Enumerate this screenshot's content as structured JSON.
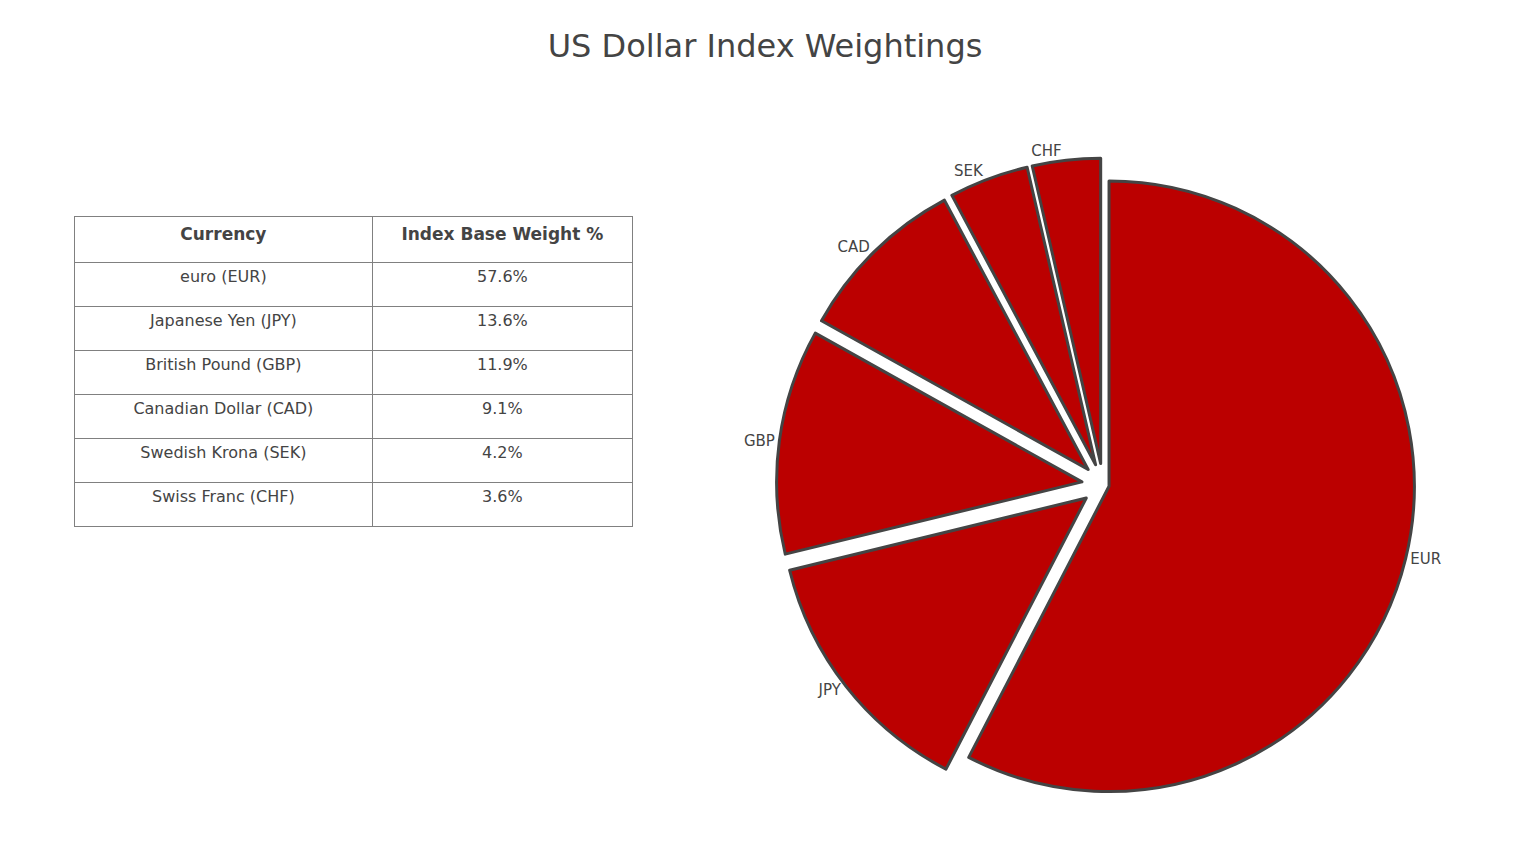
{
  "chart_data": [
    {
      "type": "pie",
      "title": "US Dollar Index Weightings",
      "categories": [
        "EUR",
        "JPY",
        "GBP",
        "CAD",
        "SEK",
        "CHF"
      ],
      "values": [
        57.6,
        13.6,
        11.9,
        9.1,
        4.2,
        3.6
      ],
      "color": "#bb0000"
    },
    {
      "type": "table",
      "columns": [
        "Currency",
        "Index Base Weight %"
      ],
      "categories": [
        "euro (EUR)",
        "Japanese Yen (JPY)",
        "British Pound (GBP)",
        "Canadian Dollar (CAD)",
        "Swedish Krona (SEK)",
        "Swiss Franc (CHF)"
      ],
      "values": [
        57.6,
        13.6,
        11.9,
        9.1,
        4.2,
        3.6
      ],
      "value_labels": [
        "57.6%",
        "13.6%",
        "11.9%",
        "9.1%",
        "4.2%",
        "3.6%"
      ]
    }
  ]
}
